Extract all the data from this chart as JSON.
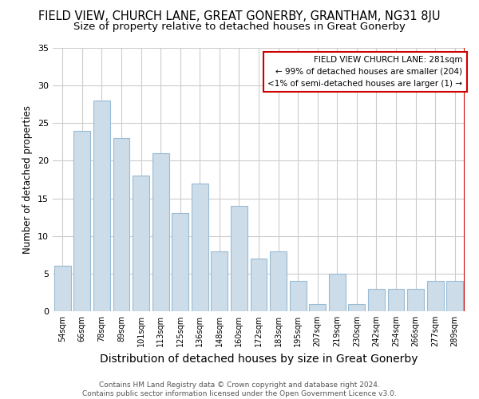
{
  "title": "FIELD VIEW, CHURCH LANE, GREAT GONERBY, GRANTHAM, NG31 8JU",
  "subtitle": "Size of property relative to detached houses in Great Gonerby",
  "xlabel": "Distribution of detached houses by size in Great Gonerby",
  "ylabel": "Number of detached properties",
  "footer_line1": "Contains HM Land Registry data © Crown copyright and database right 2024.",
  "footer_line2": "Contains public sector information licensed under the Open Government Licence v3.0.",
  "bar_labels": [
    "54sqm",
    "66sqm",
    "78sqm",
    "89sqm",
    "101sqm",
    "113sqm",
    "125sqm",
    "136sqm",
    "148sqm",
    "160sqm",
    "172sqm",
    "183sqm",
    "195sqm",
    "207sqm",
    "219sqm",
    "230sqm",
    "242sqm",
    "254sqm",
    "266sqm",
    "277sqm",
    "289sqm"
  ],
  "bar_values": [
    6,
    24,
    28,
    23,
    18,
    21,
    13,
    17,
    8,
    14,
    7,
    8,
    4,
    1,
    5,
    1,
    3,
    3,
    3,
    4,
    4
  ],
  "bar_color": "#ccdce8",
  "bar_edge_color": "#99bbd4",
  "highlight_color": "#cc0000",
  "annotation_lines": [
    "FIELD VIEW CHURCH LANE: 281sqm",
    "← 99% of detached houses are smaller (204)",
    "<1% of semi-detached houses are larger (1) →"
  ],
  "annotation_box_color": "#ffffff",
  "annotation_box_edge": "#cc0000",
  "ylim": [
    0,
    35
  ],
  "yticks": [
    0,
    5,
    10,
    15,
    20,
    25,
    30,
    35
  ],
  "grid_color": "#cccccc",
  "bg_color": "#ffffff",
  "title_fontsize": 10.5,
  "subtitle_fontsize": 9.5,
  "xlabel_fontsize": 10,
  "ylabel_fontsize": 8.5,
  "footer_fontsize": 6.5
}
